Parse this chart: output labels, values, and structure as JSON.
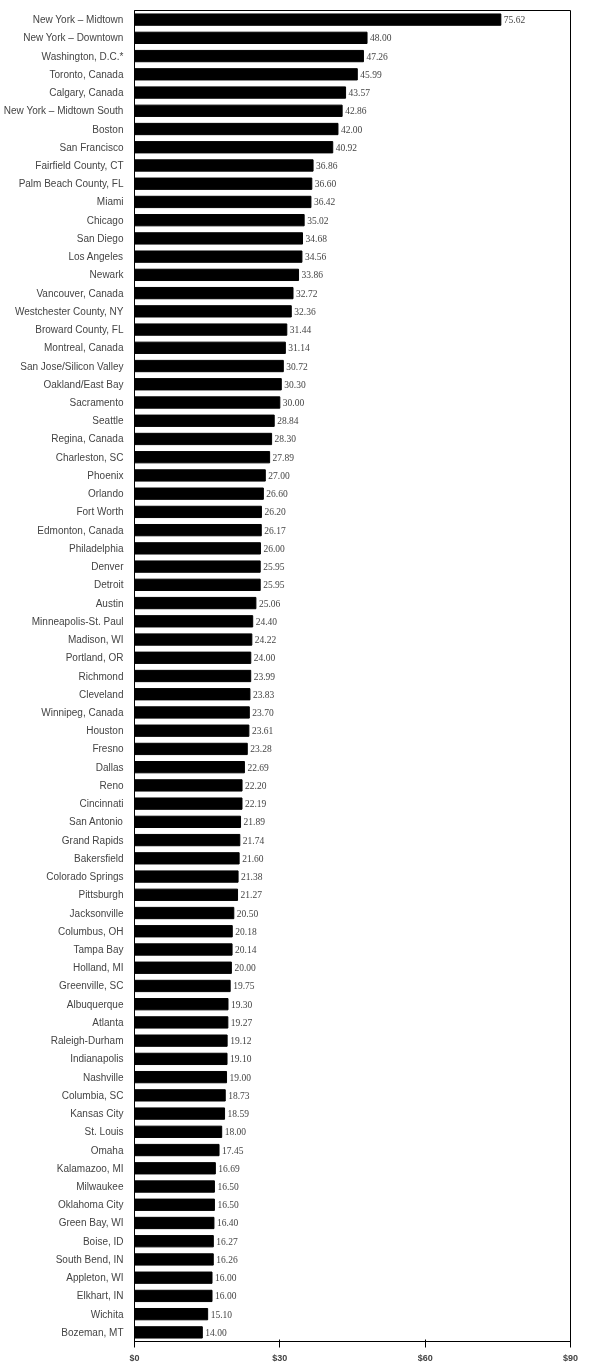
{
  "chart_data": {
    "type": "bar",
    "orientation": "horizontal",
    "categories": [
      "New York – Midtown",
      "New York – Downtown",
      "Washington, D.C.*",
      "Toronto, Canada",
      "Calgary, Canada",
      "New York – Midtown South",
      "Boston",
      "San Francisco",
      "Fairfield County, CT",
      "Palm Beach County, FL",
      "Miami",
      "Chicago",
      "San Diego",
      "Los Angeles",
      "Newark",
      "Vancouver, Canada",
      "Westchester County, NY",
      "Broward County, FL",
      "Montreal, Canada",
      "San Jose/Silicon Valley",
      "Oakland/East Bay",
      "Sacramento",
      "Seattle",
      "Regina, Canada",
      "Charleston, SC",
      "Phoenix",
      "Orlando",
      "Fort Worth",
      "Edmonton, Canada",
      "Philadelphia",
      "Denver",
      "Detroit",
      "Austin",
      "Minneapolis-St. Paul",
      "Madison, WI",
      "Portland, OR",
      "Richmond",
      "Cleveland",
      "Winnipeg, Canada",
      "Houston",
      "Fresno",
      "Dallas",
      "Reno",
      "Cincinnati",
      "San Antonio",
      "Grand Rapids",
      "Bakersfield",
      "Colorado Springs",
      "Pittsburgh",
      "Jacksonville",
      "Columbus, OH",
      "Tampa Bay",
      "Holland, MI",
      "Greenville, SC",
      "Albuquerque",
      "Atlanta",
      "Raleigh-Durham",
      "Indianapolis",
      "Nashville",
      "Columbia, SC",
      "Kansas City",
      "St. Louis",
      "Omaha",
      "Kalamazoo, MI",
      "Milwaukee",
      "Oklahoma City",
      "Green Bay, WI",
      "Boise, ID",
      "South Bend, IN",
      "Appleton, WI",
      "Elkhart, IN",
      "Wichita",
      "Bozeman, MT"
    ],
    "values": [
      75.62,
      48.0,
      47.26,
      45.99,
      43.57,
      42.86,
      42.0,
      40.92,
      36.86,
      36.6,
      36.42,
      35.02,
      34.68,
      34.56,
      33.86,
      32.72,
      32.36,
      31.44,
      31.14,
      30.72,
      30.3,
      30.0,
      28.84,
      28.3,
      27.89,
      27.0,
      26.6,
      26.2,
      26.17,
      26.0,
      25.95,
      25.95,
      25.06,
      24.4,
      24.22,
      24.0,
      23.99,
      23.83,
      23.7,
      23.61,
      23.28,
      22.69,
      22.2,
      22.19,
      21.89,
      21.74,
      21.6,
      21.38,
      21.27,
      20.5,
      20.18,
      20.14,
      20.0,
      19.75,
      19.3,
      19.27,
      19.12,
      19.1,
      19.0,
      18.73,
      18.59,
      18.0,
      17.45,
      16.69,
      16.5,
      16.5,
      16.4,
      16.27,
      16.26,
      16.0,
      16.0,
      15.1,
      14.0
    ],
    "value_labels": [
      "75.62",
      "48.00",
      "47.26",
      "45.99",
      "43.57",
      "42.86",
      "42.00",
      "40.92",
      "36.86",
      "36.60",
      "36.42",
      "35.02",
      "34.68",
      "34.56",
      "33.86",
      "32.72",
      "32.36",
      "31.44",
      "31.14",
      "30.72",
      "30.30",
      "30.00",
      "28.84",
      "28.30",
      "27.89",
      "27.00",
      "26.60",
      "26.20",
      "26.17",
      "26.00",
      "25.95",
      "25.95",
      "25.06",
      "24.40",
      "24.22",
      "24.00",
      "23.99",
      "23.83",
      "23.70",
      "23.61",
      "23.28",
      "22.69",
      "22.20",
      "22.19",
      "21.89",
      "21.74",
      "21.60",
      "21.38",
      "21.27",
      "20.50",
      "20.18",
      "20.14",
      "20.00",
      "19.75",
      "19.30",
      "19.27",
      "19.12",
      "19.10",
      "19.00",
      "18.73",
      "18.59",
      "18.00",
      "17.45",
      "16.69",
      "16.50",
      "16.50",
      "16.40",
      "16.27",
      "16.26",
      "16.00",
      "16.00",
      "15.10",
      "14.00"
    ],
    "color": "#000000",
    "xlim": [
      0,
      90
    ],
    "xticks": [
      {
        "value": 0,
        "label": "$0"
      },
      {
        "value": 30,
        "label": "$30"
      },
      {
        "value": 60,
        "label": "$60"
      },
      {
        "value": 90,
        "label": "$90"
      }
    ],
    "grid": false
  }
}
